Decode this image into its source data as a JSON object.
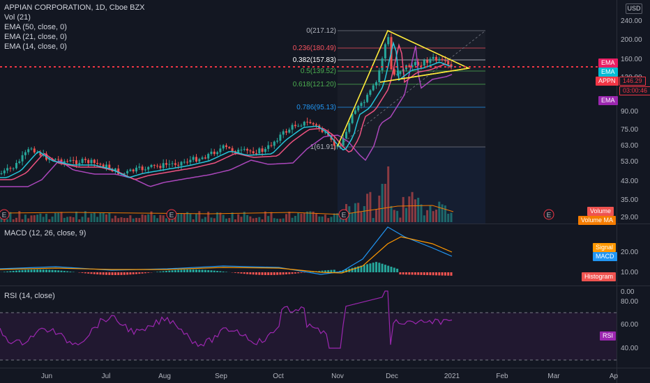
{
  "legend": {
    "title": "APPIAN CORPORATION, 1D, Cboe BZX",
    "lines": [
      "Vol (21)",
      "EMA (50, close, 0)",
      "EMA (21, close, 0)",
      "EMA (14, close, 0)"
    ]
  },
  "currency": "USD",
  "price_axis": [
    "240.00",
    "200.00",
    "160.00",
    "120.00",
    "90.00",
    "75.00",
    "63.00",
    "53.00",
    "43.00",
    "35.00",
    "29.00"
  ],
  "macd_axis": [
    "20.00",
    "10.00",
    "0.00"
  ],
  "rsi_axis": [
    "80.00",
    "60.00",
    "40.00"
  ],
  "time_axis": [
    "Jun",
    "Jul",
    "Aug",
    "Sep",
    "Oct",
    "Nov",
    "Dec",
    "2021",
    "Feb",
    "Mar",
    "Ap"
  ],
  "fib_levels": [
    {
      "label": "0(217.12)",
      "color": "#b2b5be"
    },
    {
      "label": "0.236(180.49)",
      "color": "#f7525f"
    },
    {
      "label": "0.382(157.83)",
      "color": "#ffffff"
    },
    {
      "label": "0.5(139.52)",
      "color": "#4caf50"
    },
    {
      "label": "0.618(121.20)",
      "color": "#4caf50"
    },
    {
      "label": "0.786(95.13)",
      "color": "#2196f3"
    },
    {
      "label": "1(61.91)",
      "color": "#b2b5be"
    }
  ],
  "earnings_marker": "E",
  "macd_legend": "MACD (12, 26, close, 9)",
  "rsi_legend": "RSI (14, close)",
  "tags": {
    "ema_pink": "EMA",
    "ema_teal": "EMA",
    "symbol": "APPN",
    "price": "146.29",
    "countdown": "03:00:46",
    "ema_purple": "EMA",
    "volume": "Volume",
    "volume_ma": "Volume MA",
    "signal": "Signal",
    "macd": "MACD",
    "histogram": "Histogram",
    "rsi": "RSI"
  },
  "colors": {
    "background": "#131722",
    "up": "#26a69a",
    "down": "#ef5350",
    "ema14": "#26c6da",
    "ema21": "#ef5381",
    "ema50": "#ab47bc",
    "triangle": "#ffeb3b",
    "rsi": "#9c27b0"
  }
}
